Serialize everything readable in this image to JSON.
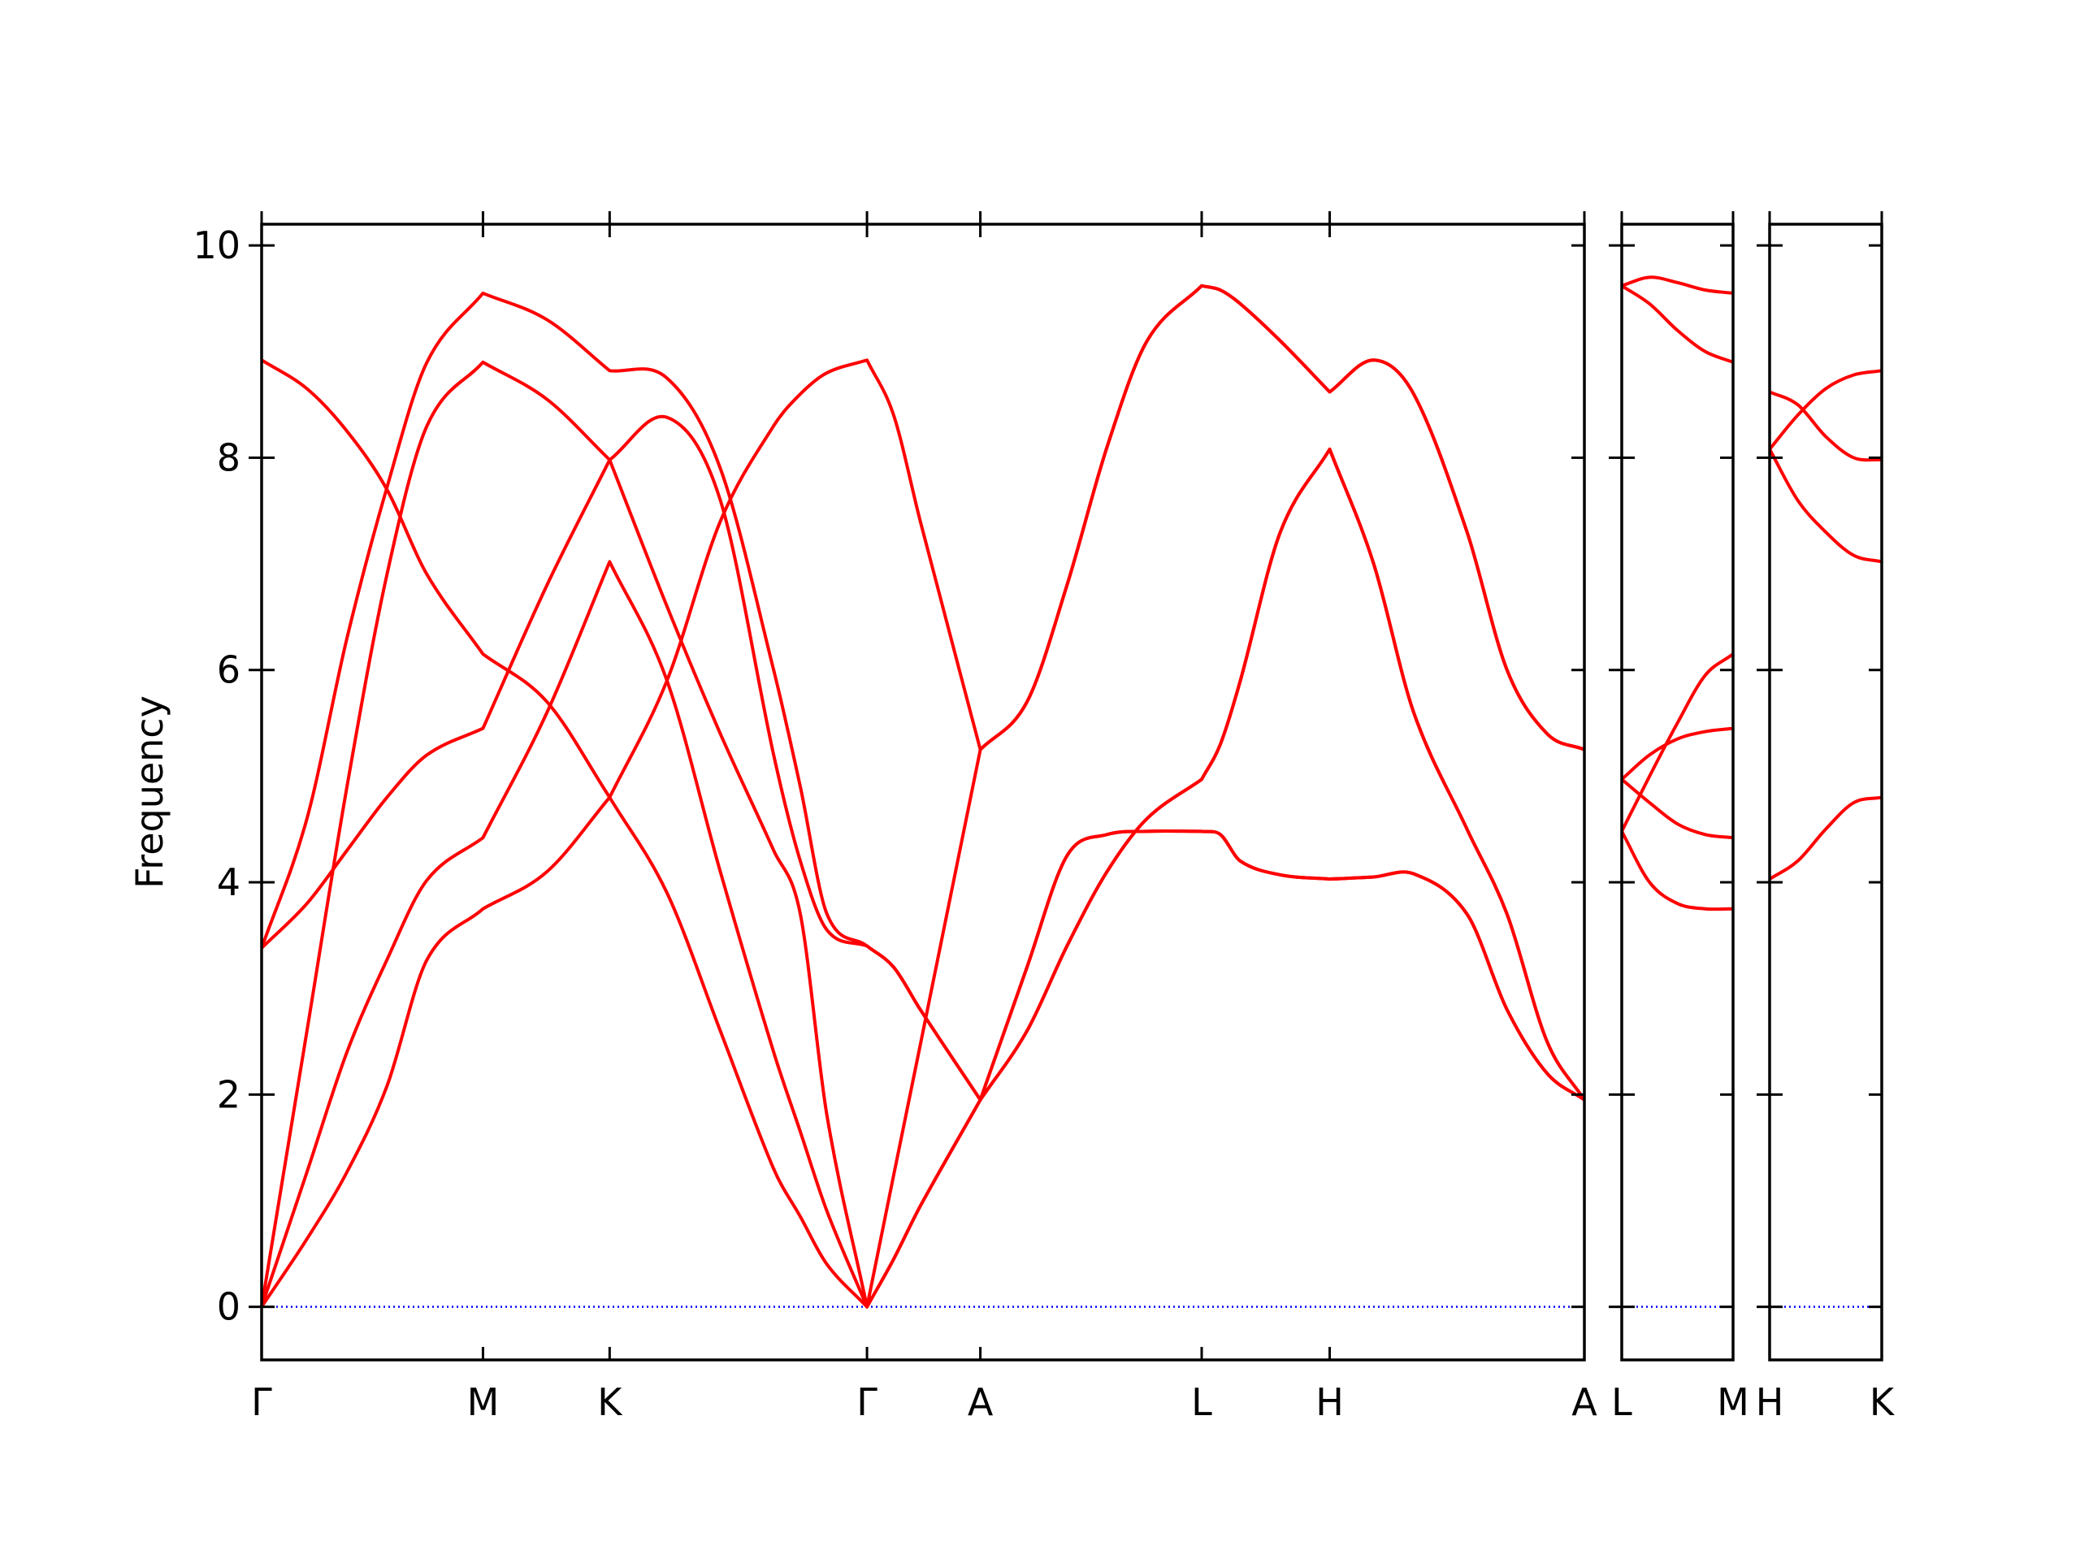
{
  "chart_data": [
    {
      "type": "line",
      "ylabel": "Frequency",
      "ytick_labels": true,
      "xlim": [
        0,
        9.92
      ],
      "ylim": [
        -0.5,
        10.2
      ],
      "xticks": [
        {
          "value": 0,
          "label": "Γ"
        },
        {
          "value": 1.66,
          "label": "M"
        },
        {
          "value": 2.61,
          "label": "K"
        },
        {
          "value": 4.54,
          "label": "Γ"
        },
        {
          "value": 5.39,
          "label": "A"
        },
        {
          "value": 7.05,
          "label": "L"
        },
        {
          "value": 8.01,
          "label": "H"
        },
        {
          "value": 9.92,
          "label": "A"
        }
      ],
      "yticks": [
        0,
        2,
        4,
        6,
        8,
        10
      ],
      "hline": 0,
      "hline_color": "#0000ff",
      "x": [
        0,
        0.34,
        0.64,
        0.94,
        1.24,
        1.66,
        2.14,
        2.61,
        3.04,
        3.44,
        3.84,
        4.04,
        4.24,
        4.54,
        4.74,
        4.94,
        5.39,
        5.74,
        6.04,
        6.34,
        6.64,
        7.05,
        7.19,
        7.34,
        7.64,
        8.01,
        8.34,
        8.64,
        9.04,
        9.34,
        9.64,
        9.92
      ],
      "series": [
        {
          "color": "#ff0000",
          "values": [
            0,
            0.64,
            1.27,
            2.08,
            3.27,
            3.75,
            4.1,
            4.8,
            5.9,
            7.4,
            8.3,
            8.6,
            8.8,
            8.92,
            8.4,
            7.4,
            5.25,
            5.7,
            6.8,
            8.1,
            9.1,
            9.62,
            9.58,
            9.45,
            9.1,
            8.62,
            8.92,
            8.6,
            7.3,
            6.0,
            5.4,
            5.25
          ]
        },
        {
          "color": "#ff0000",
          "values": [
            0,
            1.27,
            2.4,
            3.27,
            4.02,
            4.42,
            5.6,
            7.02,
            5.9,
            4.1,
            2.4,
            1.65,
            0.9,
            0,
            0.45,
            0.95,
            1.95,
            3.2,
            4.25,
            4.45,
            4.48,
            4.48,
            4.45,
            4.2,
            4.07,
            4.03,
            4.05,
            4.08,
            3.7,
            2.8,
            2.2,
            1.95
          ]
        },
        {
          "color": "#ff0000",
          "values": [
            0,
            2.6,
            4.9,
            6.9,
            8.3,
            8.9,
            8.55,
            7.98,
            8.38,
            7.6,
            5.2,
            4.2,
            3.55,
            3.4,
            3.2,
            2.8,
            1.95,
            3.2,
            4.25,
            4.45,
            4.48,
            4.48,
            4.45,
            4.2,
            4.07,
            4.03,
            4.05,
            4.08,
            3.7,
            2.8,
            2.2,
            1.95
          ]
        },
        {
          "color": "#ff0000",
          "values": [
            3.38,
            3.8,
            4.3,
            4.8,
            5.2,
            5.45,
            6.8,
            7.98,
            6.6,
            5.4,
            4.3,
            3.7,
            1.8,
            0,
            1.24,
            2.47,
            5.25,
            5.7,
            6.8,
            8.1,
            9.1,
            9.62,
            9.58,
            9.45,
            9.1,
            8.62,
            8.92,
            8.6,
            7.3,
            6.0,
            5.4,
            5.25
          ]
        },
        {
          "color": "#ff0000",
          "values": [
            3.38,
            4.6,
            6.3,
            7.72,
            8.9,
            9.55,
            9.3,
            8.82,
            8.75,
            7.9,
            6.0,
            4.9,
            3.7,
            3.4,
            3.2,
            2.8,
            1.95,
            2.6,
            3.4,
            4.1,
            4.6,
            4.97,
            5.3,
            5.9,
            7.3,
            8.08,
            7.0,
            5.6,
            4.5,
            3.7,
            2.5,
            1.95
          ]
        },
        {
          "color": "#ff0000",
          "values": [
            8.92,
            8.65,
            8.25,
            7.7,
            6.9,
            6.15,
            5.7,
            4.8,
            3.9,
            2.6,
            1.3,
            0.85,
            0.4,
            0,
            0.45,
            0.95,
            1.95,
            2.6,
            3.4,
            4.1,
            4.6,
            4.97,
            5.3,
            5.9,
            7.3,
            8.08,
            7.0,
            5.6,
            4.5,
            3.7,
            2.5,
            1.95
          ]
        }
      ]
    },
    {
      "type": "line",
      "ytick_labels": false,
      "xlim": [
        0,
        0.84
      ],
      "ylim": [
        -0.5,
        10.2
      ],
      "xticks": [
        {
          "value": 0,
          "label": "L"
        },
        {
          "value": 0.84,
          "label": "M"
        }
      ],
      "yticks": [
        0,
        2,
        4,
        6,
        8,
        10
      ],
      "hline": 0,
      "hline_color": "#0000ff",
      "x": [
        0,
        0.21,
        0.42,
        0.63,
        0.84
      ],
      "series": [
        {
          "color": "#ff0000",
          "values": [
            9.62,
            9.7,
            9.65,
            9.58,
            9.55
          ]
        },
        {
          "color": "#ff0000",
          "values": [
            9.62,
            9.45,
            9.2,
            9.0,
            8.9
          ]
        },
        {
          "color": "#ff0000",
          "values": [
            4.97,
            5.2,
            5.35,
            5.42,
            5.45
          ]
        },
        {
          "color": "#ff0000",
          "values": [
            4.97,
            4.75,
            4.55,
            4.45,
            4.42
          ]
        },
        {
          "color": "#ff0000",
          "values": [
            4.48,
            5.0,
            5.5,
            5.95,
            6.15
          ]
        },
        {
          "color": "#ff0000",
          "values": [
            4.48,
            4.0,
            3.8,
            3.75,
            3.75
          ]
        }
      ]
    },
    {
      "type": "line",
      "ytick_labels": false,
      "xlim": [
        0,
        0.84
      ],
      "ylim": [
        -0.5,
        10.2
      ],
      "xticks": [
        {
          "value": 0,
          "label": "H"
        },
        {
          "value": 0.84,
          "label": "K"
        }
      ],
      "yticks": [
        0,
        2,
        4,
        6,
        8,
        10
      ],
      "hline": 0,
      "hline_color": "#0000ff",
      "x": [
        0,
        0.21,
        0.42,
        0.63,
        0.84
      ],
      "series": [
        {
          "color": "#ff0000",
          "values": [
            8.62,
            8.5,
            8.2,
            8.0,
            7.98
          ]
        },
        {
          "color": "#ff0000",
          "values": [
            8.08,
            8.4,
            8.65,
            8.78,
            8.82
          ]
        },
        {
          "color": "#ff0000",
          "values": [
            8.08,
            7.6,
            7.3,
            7.08,
            7.02
          ]
        },
        {
          "color": "#ff0000",
          "values": [
            4.03,
            4.2,
            4.5,
            4.75,
            4.8
          ]
        }
      ]
    }
  ]
}
